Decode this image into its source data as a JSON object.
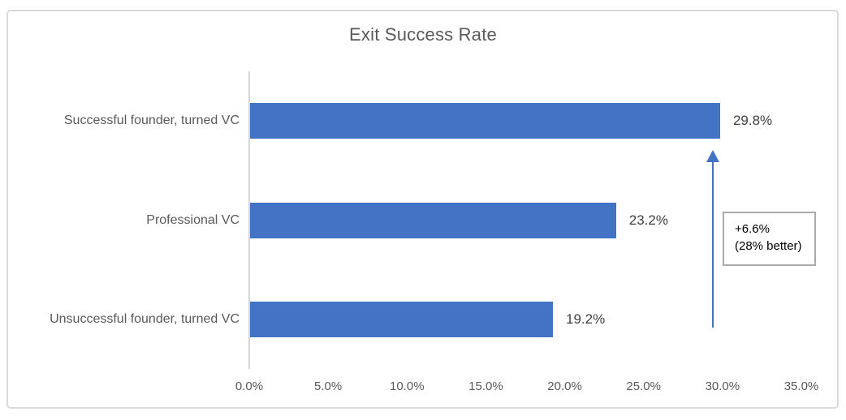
{
  "chart_data": {
    "type": "bar",
    "orientation": "horizontal",
    "title": "Exit Success Rate",
    "categories": [
      "Successful founder, turned VC",
      "Professional VC",
      "Unsuccessful founder, turned VC"
    ],
    "values": [
      29.8,
      23.2,
      19.2
    ],
    "value_labels": [
      "29.8%",
      "23.2%",
      "19.2%"
    ],
    "xlim": [
      0,
      35
    ],
    "x_ticks": [
      "0.0%",
      "5.0%",
      "10.0%",
      "15.0%",
      "20.0%",
      "25.0%",
      "30.0%",
      "35.0%"
    ],
    "grid": "off",
    "legend": "none",
    "bar_color": "#4472C4",
    "annotation": {
      "line1": "+6.6%",
      "line2": "(28% better)",
      "arrow_color": "#4472C4",
      "box_border_color": "#ABABAB"
    }
  }
}
